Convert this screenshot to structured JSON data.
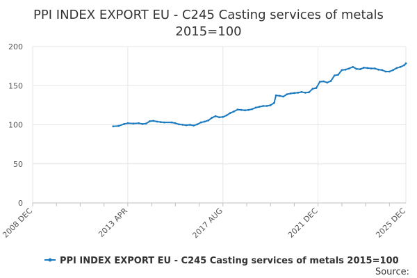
{
  "chart_data": {
    "type": "line",
    "title_lines": [
      "PPI INDEX EXPORT EU - C245 Casting services of metals",
      "2015=100"
    ],
    "xlabel": "",
    "ylabel": "",
    "ylim": [
      0,
      200
    ],
    "y_ticks": [
      0,
      50,
      100,
      150,
      200
    ],
    "x_tick_labels": [
      "2008 DEC",
      "2013 APR",
      "2017 AUG",
      "2021 DEC",
      "2025 DEC"
    ],
    "x_tick_month_index": [
      0,
      52,
      104,
      156,
      204
    ],
    "grid": true,
    "legend_position": "bottom",
    "series": [
      {
        "name": "PPI INDEX EXPORT EU - C245 Casting services of metals 2015=100",
        "color": "#1a7abf",
        "points": [
          [
            44,
            98
          ],
          [
            47,
            98.5
          ],
          [
            50,
            101
          ],
          [
            52,
            102
          ],
          [
            55,
            101.5
          ],
          [
            58,
            102
          ],
          [
            60,
            101
          ],
          [
            62,
            101.5
          ],
          [
            64,
            104.5
          ],
          [
            66,
            105
          ],
          [
            68,
            104
          ],
          [
            70,
            103.5
          ],
          [
            72,
            103
          ],
          [
            76,
            103
          ],
          [
            78,
            102
          ],
          [
            80,
            100.5
          ],
          [
            82,
            100
          ],
          [
            84,
            99.5
          ],
          [
            86,
            100
          ],
          [
            88,
            99
          ],
          [
            90,
            100.5
          ],
          [
            92,
            103
          ],
          [
            94,
            104
          ],
          [
            96,
            105.5
          ],
          [
            98,
            109
          ],
          [
            100,
            111
          ],
          [
            102,
            109.5
          ],
          [
            104,
            110
          ],
          [
            106,
            112
          ],
          [
            108,
            115
          ],
          [
            110,
            117
          ],
          [
            112,
            119.5
          ],
          [
            114,
            119
          ],
          [
            116,
            118.5
          ],
          [
            118,
            119
          ],
          [
            120,
            120
          ],
          [
            122,
            122
          ],
          [
            124,
            123
          ],
          [
            126,
            124
          ],
          [
            128,
            124
          ],
          [
            130,
            125
          ],
          [
            132,
            128
          ],
          [
            133,
            137.5
          ],
          [
            135,
            137
          ],
          [
            137,
            136
          ],
          [
            139,
            139
          ],
          [
            141,
            140
          ],
          [
            143,
            140.5
          ],
          [
            145,
            141
          ],
          [
            147,
            142
          ],
          [
            149,
            141
          ],
          [
            151,
            141.5
          ],
          [
            153,
            146
          ],
          [
            155,
            147
          ],
          [
            157,
            155
          ],
          [
            159,
            155.5
          ],
          [
            161,
            154
          ],
          [
            163,
            156
          ],
          [
            165,
            163
          ],
          [
            167,
            164
          ],
          [
            169,
            170
          ],
          [
            171,
            170.5
          ],
          [
            173,
            172
          ],
          [
            175,
            174
          ],
          [
            177,
            171.5
          ],
          [
            179,
            171
          ],
          [
            181,
            173
          ],
          [
            183,
            172.5
          ],
          [
            185,
            172
          ],
          [
            187,
            172
          ],
          [
            189,
            170.5
          ],
          [
            191,
            170
          ],
          [
            193,
            168
          ],
          [
            195,
            168
          ],
          [
            197,
            170
          ],
          [
            199,
            172.5
          ],
          [
            201,
            174
          ],
          [
            203,
            176
          ],
          [
            204,
            178.5
          ]
        ]
      }
    ],
    "source_label": "Source:"
  }
}
